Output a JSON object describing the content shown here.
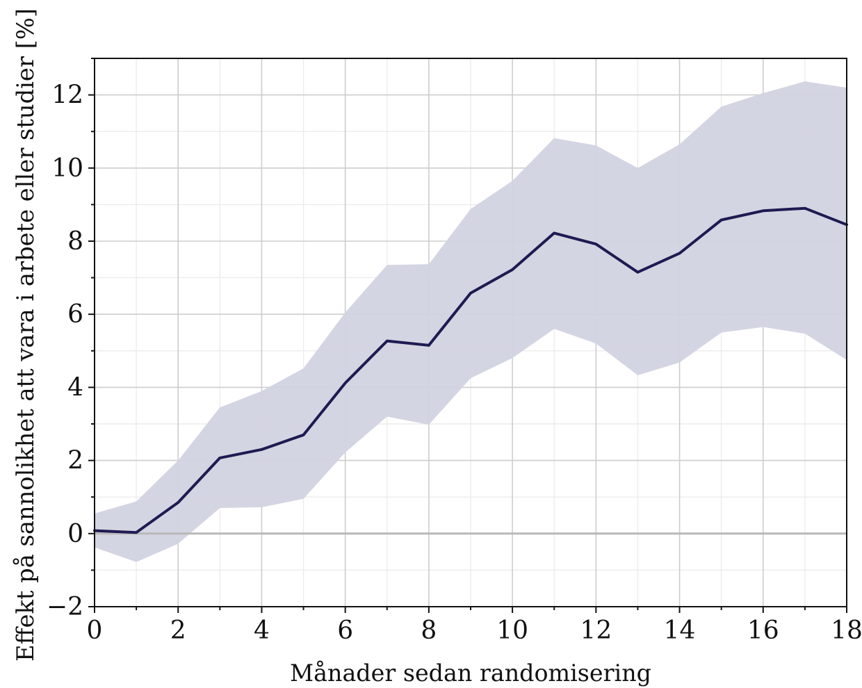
{
  "chart_data": {
    "type": "line",
    "title": "",
    "xlabel": "Månader sedan randomisering",
    "ylabel": "Effekt på sannolikhet att vara i arbete eller studier [%]",
    "xlim": [
      0,
      18
    ],
    "ylim": [
      -2,
      13
    ],
    "x_ticks": [
      0,
      2,
      4,
      6,
      8,
      10,
      12,
      14,
      16,
      18
    ],
    "y_ticks": [
      -2,
      0,
      2,
      4,
      6,
      8,
      10,
      12
    ],
    "y_tick_labels": [
      "−2",
      "0",
      "2",
      "4",
      "6",
      "8",
      "10",
      "12"
    ],
    "grid": true,
    "reference_line_y": 0,
    "x": [
      0,
      1,
      2,
      3,
      4,
      5,
      6,
      7,
      8,
      9,
      10,
      11,
      12,
      13,
      14,
      15,
      16,
      17,
      18
    ],
    "series": [
      {
        "values": [
          0.08,
          0.03,
          0.85,
          2.07,
          2.3,
          2.7,
          4.12,
          5.27,
          5.15,
          6.58,
          7.22,
          8.22,
          7.92,
          7.15,
          7.67,
          8.58,
          8.83,
          8.9,
          8.45
        ],
        "lower": [
          -0.38,
          -0.78,
          -0.28,
          0.7,
          0.72,
          0.95,
          2.22,
          3.2,
          2.98,
          4.25,
          4.8,
          5.6,
          5.2,
          4.33,
          4.68,
          5.5,
          5.65,
          5.47,
          4.75
        ],
        "upper": [
          0.55,
          0.88,
          2.0,
          3.45,
          3.9,
          4.52,
          6.05,
          7.35,
          7.37,
          8.88,
          9.65,
          10.82,
          10.62,
          10.0,
          10.65,
          11.68,
          12.05,
          12.37,
          12.2
        ],
        "color": "#1e1b52",
        "band_color": "#d2d3e0"
      }
    ]
  }
}
